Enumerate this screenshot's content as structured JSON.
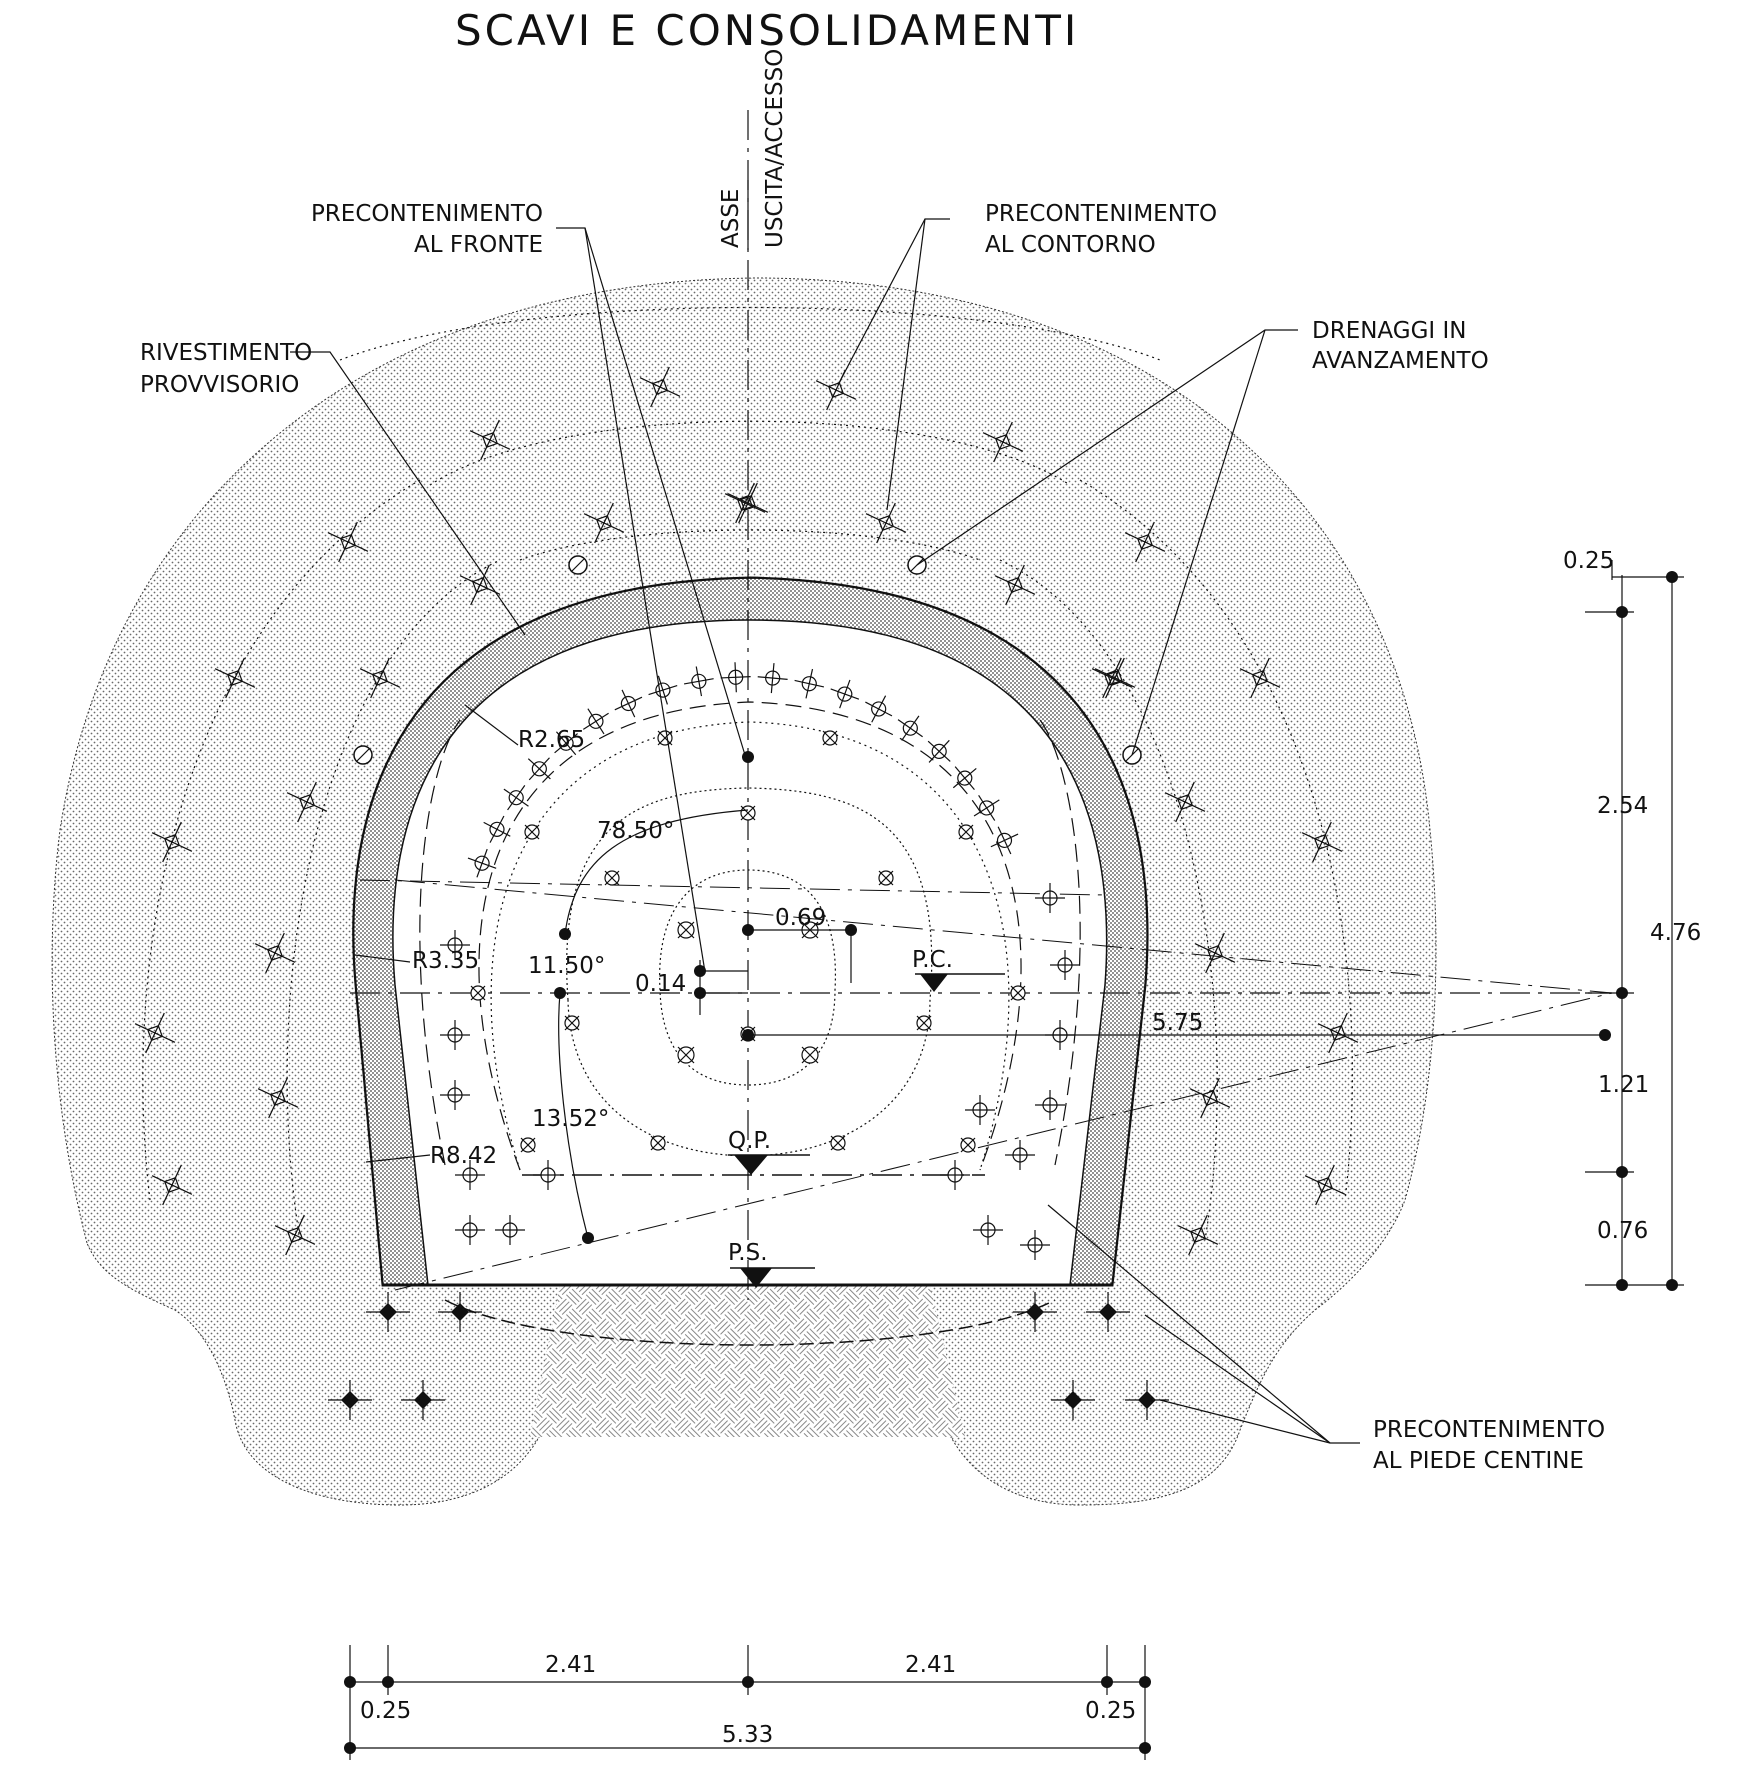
{
  "title": "SCAVI E CONSOLIDAMENTI",
  "axis": {
    "line1": "ASSE",
    "line2": "USCITA/ACCESSO"
  },
  "labels": {
    "precontenimento_fronte": [
      "PRECONTENIMENTO",
      "AL  FRONTE"
    ],
    "precontenimento_contorno": [
      "PRECONTENIMENTO",
      "AL  CONTORNO"
    ],
    "rivestimento": [
      "RIVESTIMENTO",
      "PROVVISORIO"
    ],
    "drenaggi": [
      "DRENAGGI  IN",
      "AVANZAMENTO"
    ],
    "precontenimento_piede": [
      "PRECONTENIMENTO",
      "AL  PIEDE  CENTINE"
    ]
  },
  "radii": {
    "r1": "R2.65",
    "r2": "R3.35",
    "r3": "R8.42"
  },
  "angles": {
    "a1": "78.50°",
    "a2": "11.50°",
    "a3": "13.52°"
  },
  "levels": {
    "pc": "P.C.",
    "qp": "Q.P.",
    "ps": "P.S."
  },
  "inner_dims": {
    "d1": "0.69",
    "d2": "0.14",
    "d3": "5.75"
  },
  "right_dims": {
    "d1": "0.25",
    "d2": "2.54",
    "d3": "4.76",
    "d4": "1.21",
    "d5": "0.76"
  },
  "bottom_dims": {
    "d1": "2.41",
    "d2": "2.41",
    "d3": "0.25",
    "d4": "0.25",
    "d5": "5.33"
  }
}
